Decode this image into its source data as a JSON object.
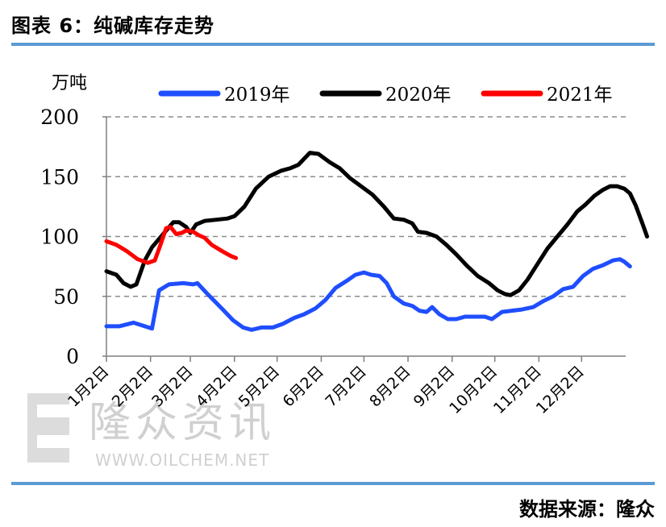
{
  "figure": {
    "title": "图表 6：纯碱库存走势",
    "source": "数据来源：隆众"
  },
  "watermark": {
    "name": "隆众资讯",
    "url": "WWW.OILCHEM.NET"
  },
  "colors": {
    "accent_rule": "#5b9bd5",
    "series_2019": "#1f4eff",
    "series_2020": "#000000",
    "series_2021": "#ff0000",
    "grid": "#8c8c8c"
  },
  "chart_data": {
    "type": "line",
    "unit_label": "万吨",
    "ylim": [
      0,
      200
    ],
    "yticks": [
      0,
      50,
      100,
      150,
      200
    ],
    "grid": "horizontal-dashed",
    "legend_position": "top",
    "x_tick_labels": [
      "1月2日",
      "2月2日",
      "3月2日",
      "4月2日",
      "5月2日",
      "6月2日",
      "7月2日",
      "8月2日",
      "9月2日",
      "10月2日",
      "11月2日",
      "12月2日"
    ],
    "x_unit": "day of year (1 = 1月2日)",
    "x_tick_positions": [
      1,
      32,
      60,
      91,
      121,
      152,
      182,
      213,
      244,
      274,
      305,
      335
    ],
    "xlim": [
      1,
      365
    ],
    "series": [
      {
        "name": "2019年",
        "color": "#1f4eff",
        "points": [
          [
            1,
            25
          ],
          [
            10,
            25
          ],
          [
            20,
            28
          ],
          [
            28,
            25
          ],
          [
            33,
            23
          ],
          [
            38,
            55
          ],
          [
            45,
            60
          ],
          [
            55,
            61
          ],
          [
            62,
            60
          ],
          [
            65,
            61
          ],
          [
            72,
            52
          ],
          [
            82,
            40
          ],
          [
            90,
            30
          ],
          [
            97,
            24
          ],
          [
            103,
            22
          ],
          [
            110,
            24
          ],
          [
            118,
            24
          ],
          [
            125,
            27
          ],
          [
            133,
            32
          ],
          [
            140,
            35
          ],
          [
            148,
            40
          ],
          [
            155,
            47
          ],
          [
            162,
            57
          ],
          [
            170,
            63
          ],
          [
            176,
            68
          ],
          [
            182,
            70
          ],
          [
            187,
            68
          ],
          [
            193,
            67
          ],
          [
            198,
            61
          ],
          [
            203,
            50
          ],
          [
            210,
            44
          ],
          [
            216,
            42
          ],
          [
            221,
            38
          ],
          [
            226,
            37
          ],
          [
            230,
            41
          ],
          [
            235,
            35
          ],
          [
            241,
            31
          ],
          [
            247,
            31
          ],
          [
            253,
            33
          ],
          [
            260,
            33
          ],
          [
            267,
            33
          ],
          [
            272,
            31
          ],
          [
            279,
            37
          ],
          [
            286,
            38
          ],
          [
            293,
            39
          ],
          [
            301,
            41
          ],
          [
            308,
            46
          ],
          [
            315,
            50
          ],
          [
            322,
            56
          ],
          [
            329,
            58
          ],
          [
            336,
            67
          ],
          [
            343,
            73
          ],
          [
            350,
            76
          ],
          [
            357,
            80
          ],
          [
            362,
            81
          ],
          [
            365,
            79
          ],
          [
            369,
            75
          ]
        ]
      },
      {
        "name": "2020年",
        "color": "#000000",
        "points": [
          [
            1,
            71
          ],
          [
            8,
            68
          ],
          [
            13,
            61
          ],
          [
            18,
            58
          ],
          [
            22,
            60
          ],
          [
            28,
            80
          ],
          [
            33,
            91
          ],
          [
            38,
            98
          ],
          [
            43,
            105
          ],
          [
            48,
            112
          ],
          [
            52,
            112
          ],
          [
            57,
            108
          ],
          [
            60,
            103
          ],
          [
            64,
            110
          ],
          [
            70,
            113
          ],
          [
            78,
            114
          ],
          [
            86,
            115
          ],
          [
            91,
            117
          ],
          [
            98,
            125
          ],
          [
            106,
            140
          ],
          [
            115,
            150
          ],
          [
            124,
            155
          ],
          [
            130,
            157
          ],
          [
            136,
            160
          ],
          [
            140,
            165
          ],
          [
            144,
            170
          ],
          [
            150,
            169
          ],
          [
            158,
            162
          ],
          [
            165,
            157
          ],
          [
            172,
            149
          ],
          [
            180,
            142
          ],
          [
            188,
            135
          ],
          [
            196,
            125
          ],
          [
            203,
            115
          ],
          [
            210,
            114
          ],
          [
            216,
            111
          ],
          [
            220,
            104
          ],
          [
            226,
            103
          ],
          [
            233,
            100
          ],
          [
            240,
            93
          ],
          [
            247,
            85
          ],
          [
            254,
            76
          ],
          [
            262,
            67
          ],
          [
            270,
            61
          ],
          [
            276,
            55
          ],
          [
            281,
            52
          ],
          [
            285,
            51
          ],
          [
            291,
            55
          ],
          [
            297,
            64
          ],
          [
            304,
            77
          ],
          [
            311,
            90
          ],
          [
            318,
            100
          ],
          [
            325,
            110
          ],
          [
            332,
            121
          ],
          [
            338,
            127
          ],
          [
            344,
            134
          ],
          [
            350,
            139
          ],
          [
            355,
            142
          ],
          [
            360,
            142
          ],
          [
            365,
            140
          ],
          [
            369,
            136
          ],
          [
            373,
            126
          ],
          [
            378,
            110
          ],
          [
            381,
            100
          ]
        ]
      },
      {
        "name": "2021年",
        "color": "#ff0000",
        "points": [
          [
            1,
            96
          ],
          [
            8,
            93
          ],
          [
            15,
            88
          ],
          [
            23,
            81
          ],
          [
            30,
            78
          ],
          [
            35,
            80
          ],
          [
            39,
            93
          ],
          [
            43,
            107
          ],
          [
            46,
            108
          ],
          [
            50,
            102
          ],
          [
            54,
            103
          ],
          [
            57,
            105
          ],
          [
            62,
            104
          ],
          [
            66,
            101
          ],
          [
            70,
            99
          ],
          [
            75,
            93
          ],
          [
            82,
            88
          ],
          [
            88,
            84
          ],
          [
            92,
            82
          ]
        ]
      }
    ]
  }
}
